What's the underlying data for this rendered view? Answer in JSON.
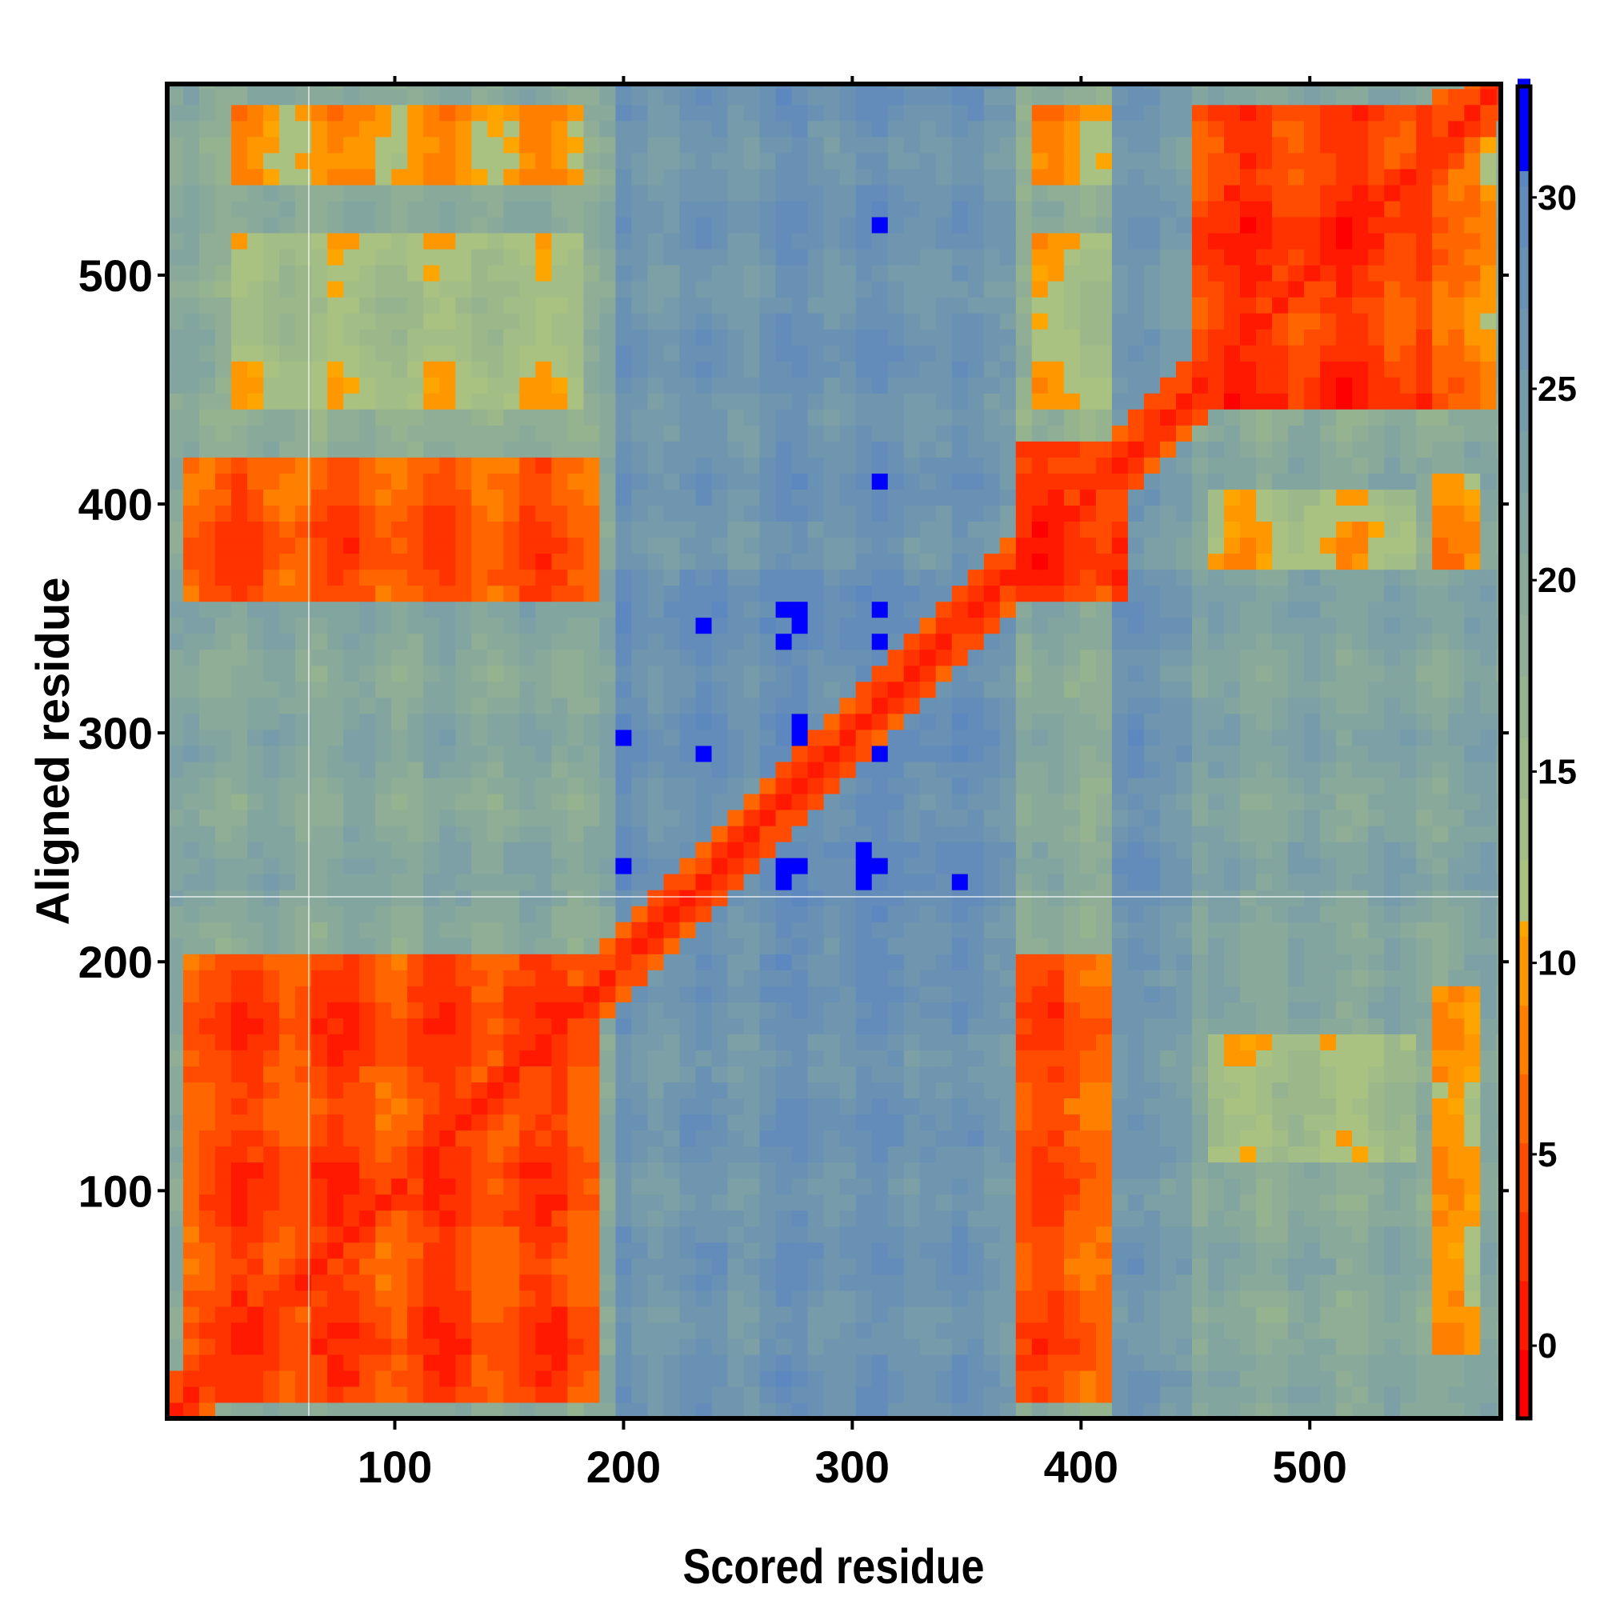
{
  "chart_data": {
    "type": "heatmap",
    "title": "",
    "xlabel": "Scored residue",
    "ylabel": "Aligned residue",
    "xlim": [
      0.5,
      583.5
    ],
    "ylim": [
      0.5,
      583.5
    ],
    "n_residues": 583,
    "xticks": [
      100,
      200,
      300,
      400,
      500
    ],
    "yticks": [
      100,
      200,
      300,
      400,
      500
    ],
    "xtick_labels": [
      "100",
      "200",
      "300",
      "400",
      "500"
    ],
    "ytick_labels": [
      "100",
      "200",
      "300",
      "400",
      "500"
    ],
    "colorbar": {
      "range": [
        -1.9,
        32.9
      ],
      "ticks": [
        0,
        5,
        10,
        15,
        20,
        25,
        30
      ],
      "tick_labels": [
        "0",
        "5",
        "10",
        "15",
        "20",
        "25",
        "30"
      ],
      "colors": {
        "low": "#ff0000",
        "orange": "#ffa500",
        "green": "#a9c281",
        "steel": "#5b86c0",
        "high": "#0000ff"
      }
    },
    "description_of_values": "Predicted aligned error (Å); low along diagonal and within domain blocks",
    "background_by_scored_range": [
      {
        "x": [
          1,
          195
        ],
        "value": 19
      },
      {
        "x": [
          195,
          372
        ],
        "value": 26
      },
      {
        "x": [
          372,
          415
        ],
        "value": 18
      },
      {
        "x": [
          415,
          450
        ],
        "value": 25
      },
      {
        "x": [
          450,
          583
        ],
        "value": 20
      }
    ],
    "regions": [
      {
        "x": [
          8,
          192
        ],
        "y": [
          5,
          205
        ],
        "value": 4
      },
      {
        "x": [
          10,
          190
        ],
        "y": [
          358,
          420
        ],
        "value": 5
      },
      {
        "x": [
          28,
          186
        ],
        "y": [
          540,
          575
        ],
        "value": 9
      },
      {
        "x": [
          30,
          180
        ],
        "y": [
          445,
          520
        ],
        "value": 13
      },
      {
        "x": [
          373,
          418
        ],
        "y": [
          360,
          425
        ],
        "value": 3
      },
      {
        "x": [
          373,
          413
        ],
        "y": [
          10,
          202
        ],
        "value": 5
      },
      {
        "x": [
          378,
          412
        ],
        "y": [
          540,
          575
        ],
        "value": 9
      },
      {
        "x": [
          378,
          412
        ],
        "y": [
          445,
          520
        ],
        "value": 12
      },
      {
        "x": [
          452,
          552
        ],
        "y": [
          445,
          578
        ],
        "value": 3
      },
      {
        "x": [
          552,
          583
        ],
        "y": [
          445,
          583
        ],
        "value": 8
      },
      {
        "x": [
          455,
          550
        ],
        "y": [
          370,
          410
        ],
        "value": 12
      },
      {
        "x": [
          455,
          550
        ],
        "y": [
          110,
          170
        ],
        "value": 13
      },
      {
        "x": [
          555,
          572
        ],
        "y": [
          30,
          190
        ],
        "value": 11
      },
      {
        "x": [
          555,
          572
        ],
        "y": [
          370,
          415
        ],
        "value": 10
      }
    ],
    "diagonal": {
      "min_value": 1,
      "slope_per_residue": 0.3
    }
  }
}
